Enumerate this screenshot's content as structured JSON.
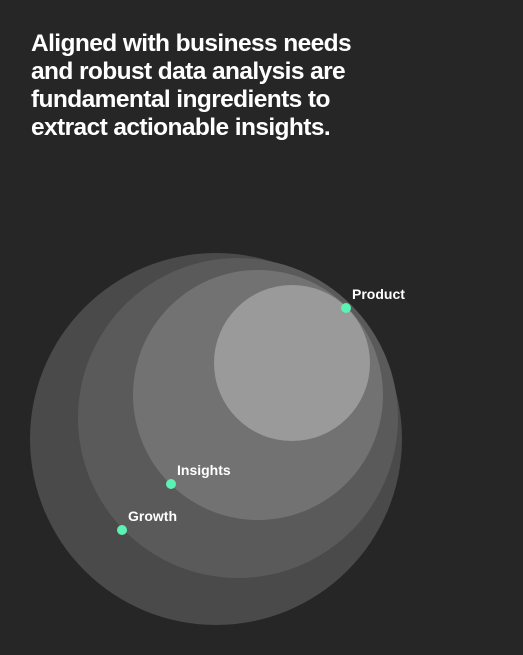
{
  "headline": {
    "lines": [
      "Aligned with business needs",
      "and robust data analysis are",
      "fundamental ingredients to",
      "extract actionable insights."
    ]
  },
  "diagram": {
    "labels": {
      "product": "Product",
      "insights": "Insights",
      "growth": "Growth"
    },
    "colors": {
      "background": "#262626",
      "circle_outer": "#4a4a4a",
      "circle_2": "#5a5a5a",
      "circle_3": "#727272",
      "circle_inner": "#9a9a9a",
      "marker": "#5cf2b4",
      "text": "#ffffff"
    }
  }
}
